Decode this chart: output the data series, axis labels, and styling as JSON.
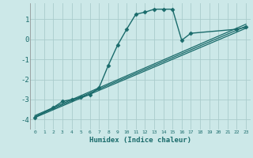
{
  "xlabel": "Humidex (Indice chaleur)",
  "ylabel": "",
  "bg_color": "#cce8e8",
  "grid_color": "#aacccc",
  "line_color": "#1a6b6b",
  "xlim": [
    -0.5,
    23.5
  ],
  "ylim": [
    -4.5,
    1.8
  ],
  "yticks": [
    -4,
    -3,
    -2,
    -1,
    0,
    1
  ],
  "xticks": [
    0,
    1,
    2,
    3,
    4,
    5,
    6,
    7,
    8,
    9,
    10,
    11,
    12,
    13,
    14,
    15,
    16,
    17,
    18,
    19,
    20,
    21,
    22,
    23
  ],
  "series": [
    {
      "x": [
        0,
        2,
        3,
        4,
        5,
        6,
        7,
        8,
        9,
        10,
        11,
        12,
        13,
        14,
        15,
        16,
        17,
        22,
        23
      ],
      "y": [
        -3.9,
        -3.4,
        -3.1,
        -3.0,
        -2.9,
        -2.75,
        -2.4,
        -1.3,
        -0.3,
        0.5,
        1.25,
        1.35,
        1.5,
        1.5,
        1.5,
        -0.05,
        0.3,
        0.5,
        0.6
      ],
      "marker": "D",
      "markersize": 2.5,
      "linestyle": "-",
      "linewidth": 1.0
    },
    {
      "x": [
        0,
        23
      ],
      "y": [
        -3.9,
        0.55
      ],
      "marker": null,
      "linestyle": "-",
      "linewidth": 0.9
    },
    {
      "x": [
        0,
        23
      ],
      "y": [
        -3.85,
        0.65
      ],
      "marker": null,
      "linestyle": "-",
      "linewidth": 0.9
    },
    {
      "x": [
        0,
        23
      ],
      "y": [
        -3.8,
        0.75
      ],
      "marker": null,
      "linestyle": "-",
      "linewidth": 0.9
    }
  ]
}
